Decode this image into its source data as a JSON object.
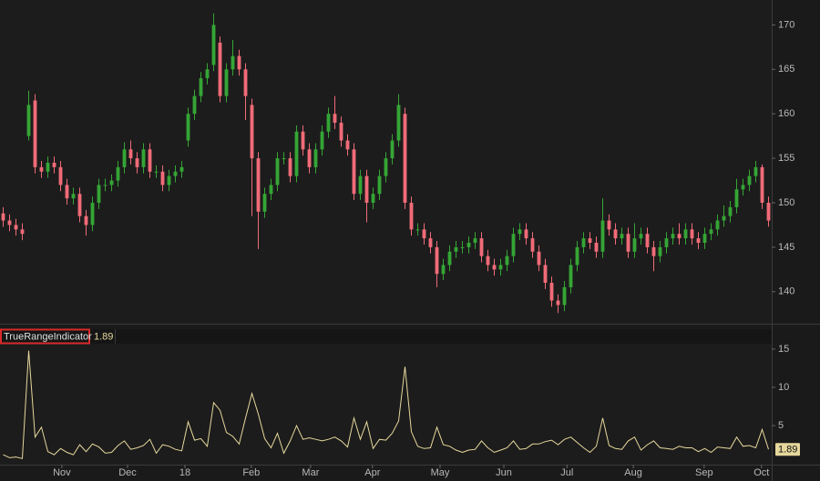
{
  "chart_data": [
    {
      "type": "candlestick",
      "up_color": "#35a535",
      "down_color": "#f06b78",
      "xlim": [
        -0.5,
        120.5
      ],
      "ylim": [
        136.4,
        172.8
      ],
      "yticks": [
        140,
        145,
        150,
        155,
        160,
        165,
        170
      ],
      "open": [
        148.8,
        148,
        147.5,
        147,
        157.5,
        161.5,
        154,
        153.5,
        154.5,
        154,
        152,
        150.5,
        151,
        148.5,
        147.5,
        150,
        152,
        152,
        152.5,
        154,
        156,
        155,
        154,
        156,
        153.5,
        153.5,
        152,
        153,
        153.5,
        157,
        160,
        162,
        164,
        165.5,
        168,
        162,
        165,
        166.5,
        165,
        161,
        155,
        149,
        151,
        152,
        155,
        155,
        153,
        158,
        156,
        154,
        156,
        158,
        160,
        159,
        157,
        156,
        151,
        153,
        150,
        151,
        153,
        155,
        157,
        160,
        150,
        147,
        147,
        146,
        145,
        142,
        143,
        144.5,
        145,
        145,
        145.5,
        146,
        144,
        143,
        142.5,
        143,
        144,
        146.5,
        147,
        146,
        144.5,
        143,
        141,
        139,
        138.5,
        140.5,
        143,
        145,
        146,
        145.5,
        144.5,
        148,
        147,
        146,
        146.5,
        144.5,
        146,
        146.5,
        145,
        144,
        145,
        146,
        146.5,
        146,
        147,
        146,
        145.5,
        146.5,
        147,
        148,
        148.5,
        149.5,
        151.5,
        152,
        153,
        154,
        150
      ],
      "high": [
        149.5,
        148.7,
        148.2,
        147.7,
        162.6,
        162.2,
        154.7,
        155.2,
        155.2,
        154.7,
        152.7,
        151.7,
        151.7,
        149.2,
        150.7,
        152.7,
        152.7,
        153.2,
        154.7,
        156.8,
        157,
        155.7,
        156.7,
        156.7,
        154.2,
        154.2,
        153.7,
        154.2,
        154.7,
        160.7,
        162.7,
        164.7,
        165.7,
        171.3,
        168.7,
        165.7,
        168.3,
        167.2,
        165.7,
        161.7,
        155.7,
        151.7,
        152.7,
        155.7,
        155.7,
        155.7,
        158.7,
        158.7,
        156.7,
        156.7,
        158.7,
        160.7,
        162,
        159.7,
        157.7,
        156.7,
        153.7,
        153.7,
        151.7,
        153.7,
        155.7,
        157.7,
        162.2,
        160.7,
        150.7,
        147.7,
        147.7,
        146.7,
        145.7,
        143.7,
        145.2,
        145.7,
        145.7,
        146.2,
        146.7,
        146.7,
        144.7,
        143.7,
        143.7,
        144.7,
        147.2,
        147.7,
        147.7,
        146.7,
        145.2,
        143.7,
        141.7,
        139.7,
        141.2,
        143.7,
        145.7,
        146.7,
        146.7,
        146.2,
        150.5,
        148.7,
        147.7,
        147.2,
        147.2,
        147.7,
        147.2,
        147.2,
        145.7,
        145.7,
        146.7,
        147.2,
        147.7,
        147.7,
        147.7,
        146.7,
        147.2,
        147.7,
        148.7,
        149.7,
        150.2,
        152.7,
        152.7,
        153.7,
        154.7,
        154.3,
        150.7
      ],
      "low": [
        147.3,
        146.8,
        146.3,
        145.8,
        157,
        153.3,
        152.8,
        152.8,
        153.3,
        151.3,
        149.8,
        149.8,
        147.8,
        146.3,
        146.8,
        149.3,
        151.3,
        151.3,
        151.8,
        153.3,
        154.3,
        153.3,
        153.3,
        152.8,
        152.8,
        151.3,
        151.3,
        152.3,
        152.8,
        156.3,
        159.3,
        161.3,
        163.3,
        164.8,
        161.3,
        161.3,
        164.3,
        164.3,
        159.3,
        148.5,
        144.8,
        148.3,
        150.3,
        151.3,
        154.3,
        152.3,
        152.3,
        155.3,
        153.3,
        153.3,
        155.3,
        157.3,
        158.3,
        156.3,
        155.3,
        150.3,
        150.3,
        147.8,
        149.3,
        150.3,
        152.3,
        154.3,
        156.3,
        149.3,
        146.3,
        146.3,
        145.3,
        144.3,
        140.5,
        141.3,
        142.3,
        143.8,
        144.3,
        144.3,
        144.8,
        143.3,
        142.3,
        141.8,
        141.8,
        142.3,
        143.3,
        145.8,
        145.3,
        143.8,
        142.3,
        140.3,
        138.3,
        137.6,
        137.8,
        139.8,
        142.3,
        144.3,
        144.8,
        143.8,
        143.8,
        146.3,
        145.3,
        145.3,
        143.8,
        143.8,
        145.3,
        144.3,
        142.3,
        143.3,
        144.3,
        145.3,
        145.3,
        145.3,
        145.3,
        144.8,
        144.8,
        145.8,
        146.3,
        147.3,
        147.8,
        148.8,
        150.8,
        151.3,
        152.3,
        149.3,
        147.3
      ],
      "close": [
        148,
        147.5,
        147,
        146.5,
        161,
        154,
        153.5,
        154.5,
        154,
        152,
        150.5,
        151,
        148.5,
        147.5,
        150,
        152,
        152,
        152.5,
        154,
        156,
        155,
        154,
        156,
        153.5,
        153.5,
        152,
        153,
        153.5,
        154,
        160,
        162,
        164,
        165,
        170,
        162,
        165,
        166.5,
        165,
        162,
        155,
        149,
        151,
        152,
        155,
        155,
        153,
        158,
        156,
        154,
        156,
        158,
        160,
        159,
        157,
        156,
        151,
        153,
        150,
        151,
        153,
        155,
        157,
        161,
        150,
        147,
        147,
        146,
        145,
        142,
        143,
        144.5,
        145,
        145,
        145.5,
        146,
        144,
        143,
        142.5,
        143,
        144,
        146.5,
        147,
        146,
        144.5,
        143,
        141,
        139,
        138.5,
        140.5,
        143,
        145,
        146,
        145.5,
        144.5,
        148,
        147,
        146,
        146.5,
        144.5,
        146,
        146.5,
        145,
        144,
        145,
        146,
        146.5,
        146,
        147,
        146,
        145.5,
        146.5,
        147,
        148,
        148.5,
        149.5,
        151.5,
        152,
        153,
        154,
        150,
        148
      ]
    },
    {
      "type": "line",
      "title": "TrueRangeIndicator",
      "color": "#e6d89c",
      "xlim": [
        -0.5,
        120.5
      ],
      "ylim": [
        -0.1,
        15.7
      ],
      "yticks": [
        5,
        10,
        15
      ],
      "xticks": [
        {
          "value": 9.2,
          "label": "Nov"
        },
        {
          "value": 19.5,
          "label": "Dec"
        },
        {
          "value": 28.5,
          "label": "18"
        },
        {
          "value": 38.9,
          "label": "Feb"
        },
        {
          "value": 48.2,
          "label": "Mar"
        },
        {
          "value": 57.9,
          "label": "Apr"
        },
        {
          "value": 68.5,
          "label": "May"
        },
        {
          "value": 78.5,
          "label": "Jun"
        },
        {
          "value": 88.4,
          "label": "Jul"
        },
        {
          "value": 98.8,
          "label": "Aug"
        },
        {
          "value": 109.9,
          "label": "Sep"
        },
        {
          "value": 118.9,
          "label": "Oct"
        }
      ],
      "values": [
        1.2,
        0.8,
        0.9,
        0.7,
        14.8,
        3.5,
        4.8,
        1.6,
        1.2,
        2.0,
        1.5,
        1.2,
        2.5,
        1.6,
        2.6,
        2.2,
        1.4,
        1.5,
        2.4,
        3.0,
        1.9,
        2.1,
        2.4,
        3.2,
        1.4,
        2.5,
        2.3,
        1.9,
        1.7,
        5.5,
        3.1,
        3.3,
        2.3,
        8.0,
        7.0,
        4.1,
        3.6,
        2.6,
        6.0,
        9.2,
        6.5,
        3.3,
        2.1,
        4.0,
        1.4,
        3.0,
        5.0,
        3.2,
        3.4,
        3.2,
        3.0,
        3.2,
        3.5,
        3.0,
        2.2,
        6.0,
        3.2,
        5.5,
        2.0,
        3.2,
        3.1,
        4.0,
        5.6,
        12.7,
        4.2,
        2.3,
        2.0,
        2.1,
        4.8,
        2.5,
        2.3,
        1.8,
        1.5,
        1.8,
        1.9,
        3.0,
        2.1,
        1.5,
        1.8,
        2.1,
        3.0,
        1.9,
        2.0,
        2.6,
        2.6,
        2.9,
        3.1,
        2.5,
        3.2,
        3.5,
        2.8,
        2.1,
        1.5,
        2.3,
        6.0,
        2.4,
        2.0,
        1.9,
        3.0,
        3.5,
        1.8,
        2.5,
        3.0,
        2.1,
        2.0,
        1.9,
        2.3,
        2.1,
        2.1,
        1.6,
        2.0,
        1.5,
        2.2,
        2.1,
        2.0,
        3.5,
        2.3,
        2.4,
        2.1,
        4.5,
        1.89
      ]
    }
  ]
}
